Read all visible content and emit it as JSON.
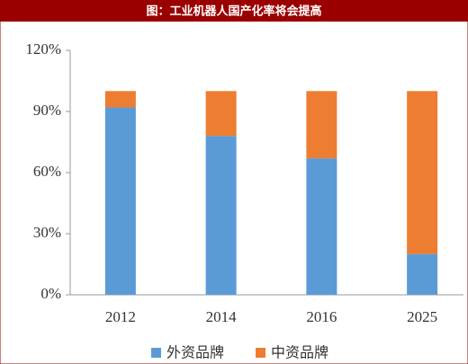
{
  "chart_data": {
    "type": "stacked-bar",
    "title": "图：工业机器人国产化率将会提高",
    "categories": [
      "2012",
      "2014",
      "2016",
      "2025"
    ],
    "series": [
      {
        "name": "外资品牌",
        "color": "#5b9bd5",
        "values": [
          92,
          78,
          67,
          20
        ]
      },
      {
        "name": "中资品牌",
        "color": "#ed7d31",
        "values": [
          8,
          22,
          33,
          80
        ]
      }
    ],
    "ylim": [
      0,
      120
    ],
    "yticks": [
      {
        "value": 0,
        "label": "0%"
      },
      {
        "value": 30,
        "label": "30%"
      },
      {
        "value": 60,
        "label": "60%"
      },
      {
        "value": 90,
        "label": "90%"
      },
      {
        "value": 120,
        "label": "120%"
      }
    ],
    "grid": false,
    "legend": "bottom"
  }
}
